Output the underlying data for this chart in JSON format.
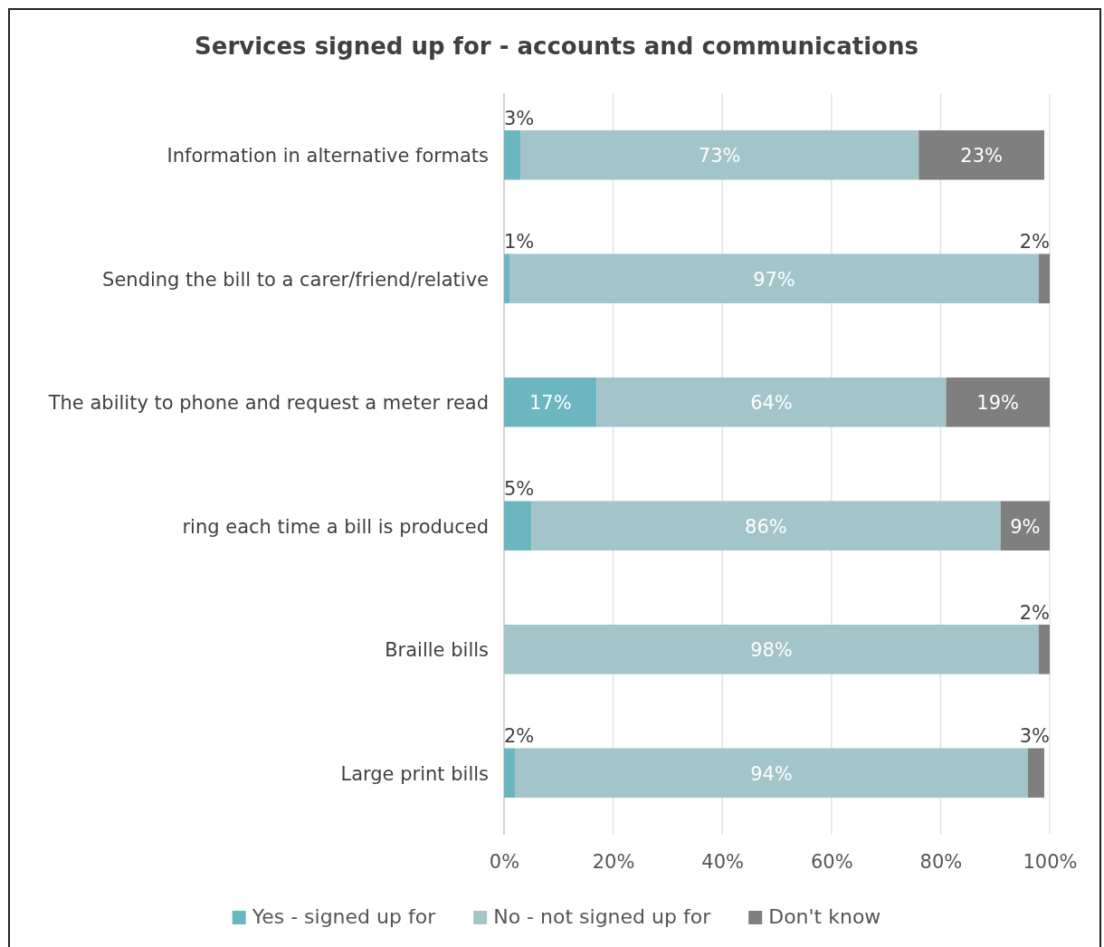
{
  "chart_data": {
    "type": "bar",
    "orientation": "horizontal",
    "stacked": true,
    "title": "Services signed up for - accounts and communications",
    "categories": [
      "Information in alternative formats",
      "Sending the bill to a carer/friend/relative",
      "The ability to phone and request a meter read",
      "ring each time a bill is produced",
      "Braille bills",
      "Large print bills"
    ],
    "series": [
      {
        "name": "Yes - signed up for",
        "color": "#6cb6c0",
        "values": [
          3,
          1,
          17,
          5,
          0,
          2
        ],
        "value_labels": [
          "3%",
          "1%",
          "17%",
          "5%",
          null,
          "2%"
        ]
      },
      {
        "name": "No - not signed up for",
        "color": "#a3c4c9",
        "values": [
          73,
          97,
          64,
          86,
          98,
          94
        ],
        "value_labels": [
          "73%",
          "97%",
          "64%",
          "86%",
          "98%",
          "94%"
        ]
      },
      {
        "name": "Don't know",
        "color": "#7f7f7f",
        "values": [
          23,
          2,
          19,
          9,
          2,
          3
        ],
        "value_labels": [
          "23%",
          "2%",
          "19%",
          "9%",
          "2%",
          "3%"
        ]
      }
    ],
    "xlim": [
      0,
      100
    ],
    "xticks": [
      {
        "value": 0,
        "label": "0%"
      },
      {
        "value": 20,
        "label": "20%"
      },
      {
        "value": 40,
        "label": "40%"
      },
      {
        "value": 60,
        "label": "60%"
      },
      {
        "value": 80,
        "label": "80%"
      },
      {
        "value": 100,
        "label": "100%"
      }
    ],
    "grid": "x",
    "legend": "bottom"
  }
}
